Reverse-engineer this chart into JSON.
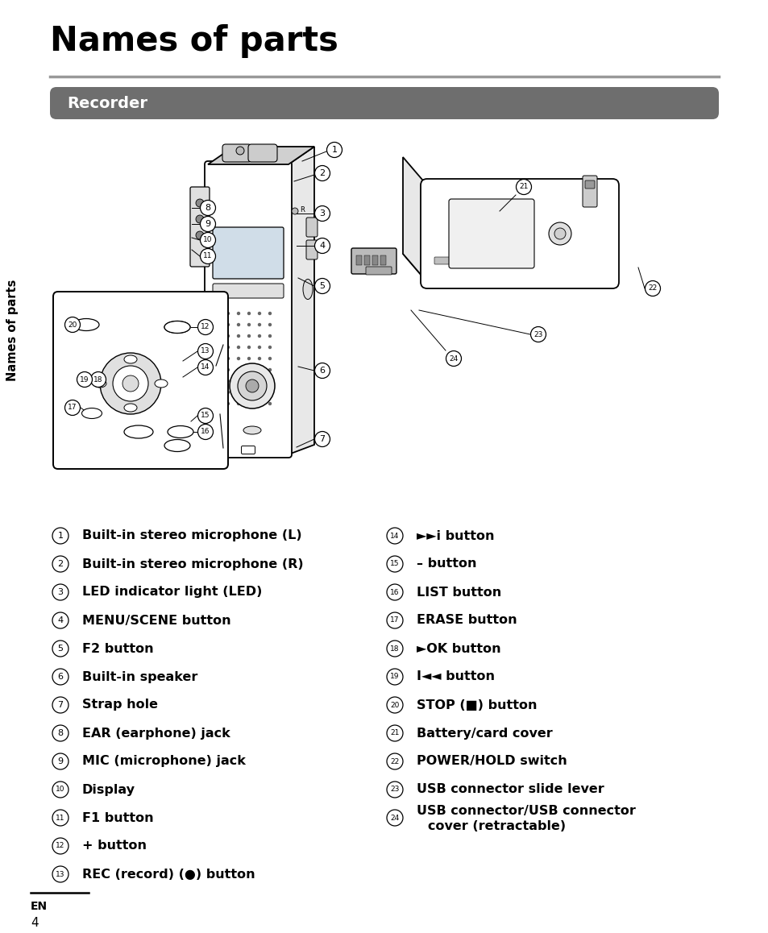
{
  "title": "Names of parts",
  "section_header": "Recorder",
  "sidebar_text": "Names of parts",
  "bg_color": "#ffffff",
  "header_bar_color": "#6e6e6e",
  "title_color": "#000000",
  "header_text_color": "#ffffff",
  "sidebar_color": "#000000",
  "left_items": [
    {
      "num": "1",
      "text": "Built-in stereo microphone (L)"
    },
    {
      "num": "2",
      "text": "Built-in stereo microphone (R)"
    },
    {
      "num": "3",
      "text": "LED indicator light (LED)"
    },
    {
      "num": "4",
      "text": "MENU/SCENE button"
    },
    {
      "num": "5",
      "text": "F2 button"
    },
    {
      "num": "6",
      "text": "Built-in speaker"
    },
    {
      "num": "7",
      "text": "Strap hole"
    },
    {
      "num": "8",
      "text": "EAR (earphone) jack"
    },
    {
      "num": "9",
      "text": "MIC (microphone) jack"
    },
    {
      "num": "10",
      "text": "Display"
    },
    {
      "num": "11",
      "text": "F1 button"
    },
    {
      "num": "12",
      "text": "+ button"
    },
    {
      "num": "13",
      "text": "REC (record) (●) button"
    }
  ],
  "right_items": [
    {
      "num": "14",
      "text": "►►i button"
    },
    {
      "num": "15",
      "text": "– button"
    },
    {
      "num": "16",
      "text": "LIST button"
    },
    {
      "num": "17",
      "text": "ERASE button"
    },
    {
      "num": "18",
      "text": "►OK button"
    },
    {
      "num": "19",
      "text": "I◄◄ button"
    },
    {
      "num": "20",
      "text": "STOP (■) button"
    },
    {
      "num": "21",
      "text": "Battery/card cover"
    },
    {
      "num": "22",
      "text": "POWER/HOLD switch"
    },
    {
      "num": "23",
      "text": "USB connector slide lever"
    },
    {
      "num": "24",
      "text": "USB connector/USB connector\ncover (retractable)"
    }
  ],
  "page_num": "4",
  "en_label": "EN"
}
